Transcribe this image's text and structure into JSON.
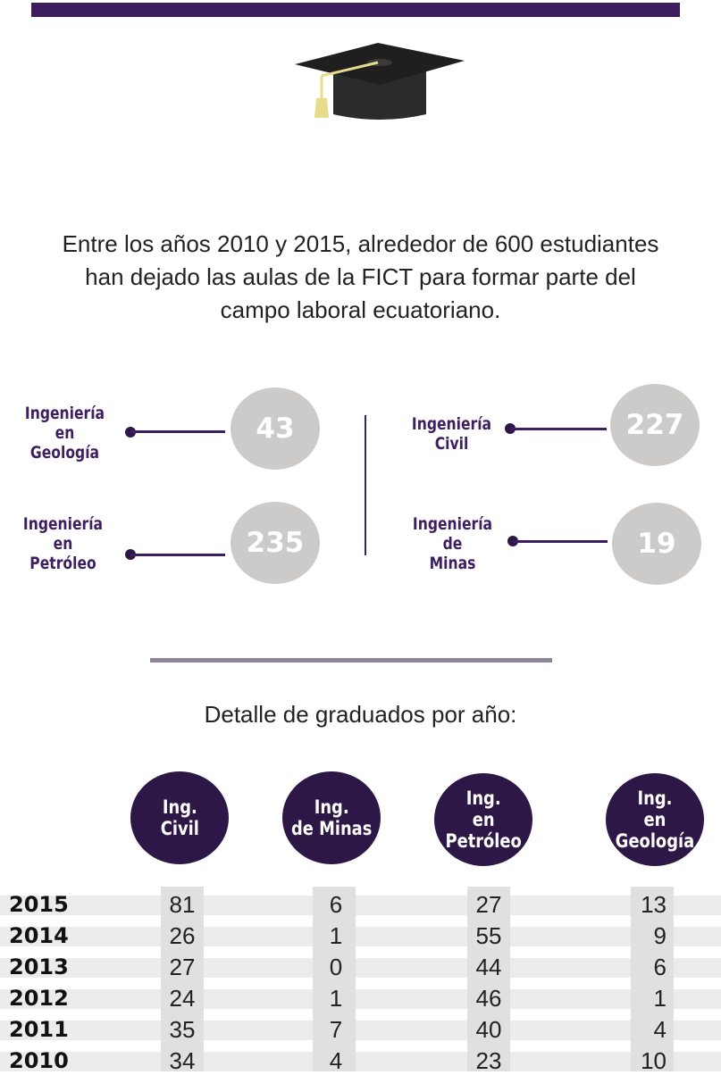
{
  "intro": {
    "line1": "Entre los años 2010 y 2015, alrededor de 600 estudiantes",
    "line2": "han dejado las aulas de la FICT para formar parte del",
    "line3": "campo laboral ecuatoriano."
  },
  "stats": [
    {
      "label": "Ingeniería\nen\nGeología",
      "value": "43"
    },
    {
      "label": "Ingeniería\nen\nPetróleo",
      "value": "235"
    },
    {
      "label": "Ingeniería\nCivil",
      "value": "227"
    },
    {
      "label": "Ingeniería\nde\nMinas",
      "value": "19"
    }
  ],
  "detail_title": "Detalle de graduados por año:",
  "table": {
    "headers": [
      "Ing.\nCivil",
      "Ing.\nde Minas",
      "Ing.\nen\nPetróleo",
      "Ing.\nen\nGeología"
    ],
    "rows": [
      {
        "year": "2015",
        "values": [
          "81",
          "6",
          "27",
          "13"
        ]
      },
      {
        "year": "2014",
        "values": [
          "26",
          "1",
          "55",
          "9"
        ]
      },
      {
        "year": "2013",
        "values": [
          "27",
          "0",
          "44",
          "6"
        ]
      },
      {
        "year": "2012",
        "values": [
          "24",
          "1",
          "46",
          "1"
        ]
      },
      {
        "year": "2011",
        "values": [
          "35",
          "7",
          "40",
          "4"
        ]
      },
      {
        "year": "2010",
        "values": [
          "34",
          "4",
          "23",
          "10"
        ]
      }
    ]
  },
  "colors": {
    "accent": "#3d1f61",
    "circle_dark": "#2d1746",
    "circle_light": "#cdcbca",
    "tassel": "#e8dc8a"
  }
}
